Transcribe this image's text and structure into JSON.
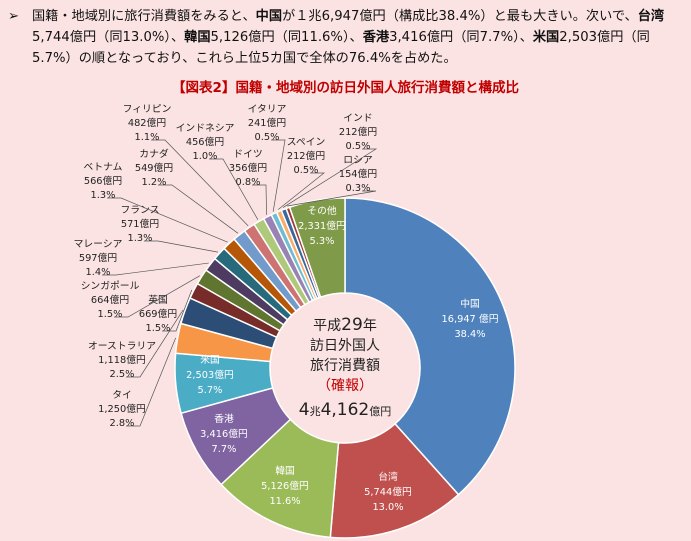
{
  "intro": {
    "bullet": "➢",
    "p1": "国籍・地域別に旅行消費額をみると、",
    "b1": "中国",
    "p2": "が１兆6,947億円（構成比38.4%）と最も大きい。次いで、",
    "b2": "台湾",
    "p3": "5,744億円（同13.0%）、",
    "b3": "韓国",
    "p4": "5,126億円（同11.6%）、",
    "b4": "香港",
    "p5": "3,416億円（同7.7%）、",
    "b5": "米国",
    "p6": "2,503億円（同5.7%）の順となっており、これら上位5カ国で全体の76.4%を占めた。"
  },
  "figure_title": "【図表2】国籍・地域別の訪日外国人旅行消費額と構成比",
  "center": {
    "line1_a": "平成",
    "line1_b": "29",
    "line1_c": "年",
    "line2": "訪日外国人",
    "line3": "旅行消費額",
    "line4": "（確報）",
    "line5_a": "4",
    "line5_b": "兆",
    "line5_c": "4,162",
    "line5_d": "億円"
  },
  "colors": {
    "center_text": "#222222",
    "center_accent": "#c00000",
    "title": "#c00000"
  },
  "chart_data": {
    "type": "pie",
    "title": "【図表2】国籍・地域別の訪日外国人旅行消費額と構成比",
    "unit": "億円",
    "total_label": "4兆4,162億円",
    "slices": [
      {
        "name": "中国",
        "value": 16947,
        "value_label": "16,947 億円",
        "pct_label": "38.4%",
        "color": "#4f81bd",
        "label_inside": true
      },
      {
        "name": "台湾",
        "value": 5744,
        "value_label": "5,744億円",
        "pct_label": "13.0%",
        "color": "#c0504d",
        "label_inside": true
      },
      {
        "name": "韓国",
        "value": 5126,
        "value_label": "5,126億円",
        "pct_label": "11.6%",
        "color": "#9bbb59",
        "label_inside": true
      },
      {
        "name": "香港",
        "value": 3416,
        "value_label": "3,416億円",
        "pct_label": "7.7%",
        "color": "#8064a2",
        "label_inside": true
      },
      {
        "name": "米国",
        "value": 2503,
        "value_label": "2,503億円",
        "pct_label": "5.7%",
        "color": "#4bacc6",
        "label_inside": true
      },
      {
        "name": "タイ",
        "value": 1250,
        "value_label": "1,250億円",
        "pct_label": "2.8%",
        "color": "#f79646",
        "label_inside": false
      },
      {
        "name": "オーストラリア",
        "value": 1118,
        "value_label": "1,118億円",
        "pct_label": "2.5%",
        "color": "#2c4d75",
        "label_inside": false
      },
      {
        "name": "英国",
        "value": 669,
        "value_label": "669億円",
        "pct_label": "1.5%",
        "color": "#772c2a",
        "label_inside": false
      },
      {
        "name": "シンガポール",
        "value": 664,
        "value_label": "664億円",
        "pct_label": "1.5%",
        "color": "#5f7530",
        "label_inside": false
      },
      {
        "name": "マレーシア",
        "value": 597,
        "value_label": "597億円",
        "pct_label": "1.4%",
        "color": "#4d3b62",
        "label_inside": false
      },
      {
        "name": "フランス",
        "value": 571,
        "value_label": "571億円",
        "pct_label": "1.3%",
        "color": "#276a7c",
        "label_inside": false
      },
      {
        "name": "ベトナム",
        "value": 566,
        "value_label": "566億円",
        "pct_label": "1.3%",
        "color": "#b65708",
        "label_inside": false
      },
      {
        "name": "カナダ",
        "value": 549,
        "value_label": "549億円",
        "pct_label": "1.2%",
        "color": "#729aca",
        "label_inside": false
      },
      {
        "name": "フィリピン",
        "value": 482,
        "value_label": "482億円",
        "pct_label": "1.1%",
        "color": "#cd7371",
        "label_inside": false
      },
      {
        "name": "インドネシア",
        "value": 456,
        "value_label": "456億円",
        "pct_label": "1.0%",
        "color": "#afc97a",
        "label_inside": false
      },
      {
        "name": "ドイツ",
        "value": 356,
        "value_label": "356億円",
        "pct_label": "0.8%",
        "color": "#9983b5",
        "label_inside": false
      },
      {
        "name": "イタリア",
        "value": 241,
        "value_label": "241億円",
        "pct_label": "0.5%",
        "color": "#6fbdd1",
        "label_inside": false
      },
      {
        "name": "スペイン",
        "value": 212,
        "value_label": "212億円",
        "pct_label": "0.5%",
        "color": "#f9ab6b",
        "label_inside": false
      },
      {
        "name": "インド",
        "value": 212,
        "value_label": "212億円",
        "pct_label": "0.5%",
        "color": "#3a679c",
        "label_inside": false
      },
      {
        "name": "ロシア",
        "value": 154,
        "value_label": "154億円",
        "pct_label": "0.3%",
        "color": "#9e3a38",
        "label_inside": false
      },
      {
        "name": "その他",
        "value": 2331,
        "value_label": "2,331億円",
        "pct_label": "5.3%",
        "color": "#7f9a48",
        "label_inside": true
      }
    ]
  }
}
